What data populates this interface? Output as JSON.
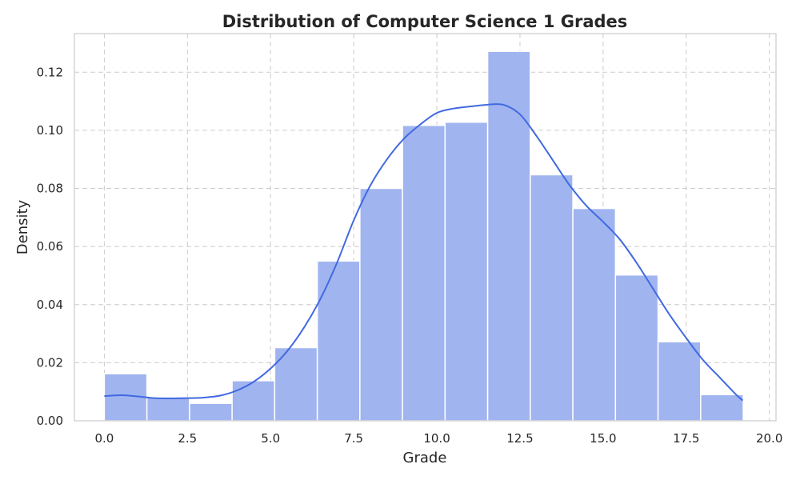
{
  "chart_data": {
    "type": "bar",
    "subtype": "histogram_with_kde",
    "title": "Distribution of Computer Science 1 Grades",
    "xlabel": "Grade",
    "ylabel": "Density",
    "xlim": [
      -0.9,
      20.2
    ],
    "ylim": [
      0,
      0.1333
    ],
    "xticks": [
      0.0,
      2.5,
      5.0,
      7.5,
      10.0,
      12.5,
      15.0,
      17.5,
      20.0
    ],
    "xtick_labels": [
      "0.0",
      "2.5",
      "5.0",
      "7.5",
      "10.0",
      "12.5",
      "15.0",
      "17.5",
      "20.0"
    ],
    "yticks": [
      0.0,
      0.02,
      0.04,
      0.06,
      0.08,
      0.1,
      0.12
    ],
    "ytick_labels": [
      "0.00",
      "0.02",
      "0.04",
      "0.06",
      "0.08",
      "0.10",
      "0.12"
    ],
    "grid": true,
    "legend": "none",
    "bar_color": "#a0b4ef",
    "line_color": "#4169e1",
    "bins": [
      {
        "x0": 0.0,
        "x1": 1.281,
        "value": 0.0162
      },
      {
        "x0": 1.281,
        "x1": 2.562,
        "value": 0.0081
      },
      {
        "x0": 2.562,
        "x1": 3.843,
        "value": 0.006
      },
      {
        "x0": 3.843,
        "x1": 5.124,
        "value": 0.0138
      },
      {
        "x0": 5.124,
        "x1": 6.405,
        "value": 0.0252
      },
      {
        "x0": 6.405,
        "x1": 7.686,
        "value": 0.055
      },
      {
        "x0": 7.686,
        "x1": 8.967,
        "value": 0.08
      },
      {
        "x0": 8.967,
        "x1": 10.248,
        "value": 0.1017
      },
      {
        "x0": 10.248,
        "x1": 11.529,
        "value": 0.1028
      },
      {
        "x0": 11.529,
        "x1": 12.81,
        "value": 0.1272
      },
      {
        "x0": 12.81,
        "x1": 14.091,
        "value": 0.0847
      },
      {
        "x0": 14.091,
        "x1": 15.372,
        "value": 0.0731
      },
      {
        "x0": 15.372,
        "x1": 16.653,
        "value": 0.0502
      },
      {
        "x0": 16.653,
        "x1": 17.934,
        "value": 0.0272
      },
      {
        "x0": 17.934,
        "x1": 19.215,
        "value": 0.009
      }
    ],
    "kde": {
      "x": [
        0.0,
        0.5,
        1.0,
        1.5,
        2.0,
        2.5,
        3.0,
        3.5,
        4.0,
        4.5,
        5.0,
        5.5,
        6.0,
        6.5,
        7.0,
        7.5,
        8.0,
        8.5,
        9.0,
        9.5,
        10.0,
        10.5,
        11.0,
        11.5,
        12.0,
        12.5,
        13.0,
        13.5,
        14.0,
        14.5,
        15.0,
        15.5,
        16.0,
        16.5,
        17.0,
        17.5,
        18.0,
        18.5,
        19.0,
        19.2
      ],
      "y": [
        0.0085,
        0.0088,
        0.0084,
        0.0078,
        0.0077,
        0.0078,
        0.008,
        0.0087,
        0.0105,
        0.0135,
        0.018,
        0.024,
        0.032,
        0.042,
        0.0545,
        0.069,
        0.081,
        0.09,
        0.097,
        0.102,
        0.106,
        0.1075,
        0.1082,
        0.1088,
        0.1088,
        0.1055,
        0.098,
        0.0895,
        0.081,
        0.074,
        0.0685,
        0.0625,
        0.0545,
        0.0455,
        0.0365,
        0.0285,
        0.021,
        0.015,
        0.009,
        0.007
      ]
    }
  }
}
